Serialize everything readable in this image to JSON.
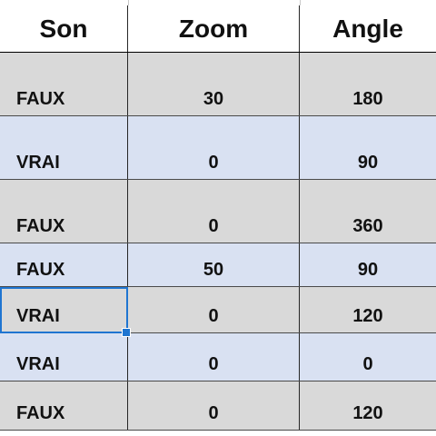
{
  "table": {
    "columns": [
      "Son",
      "Zoom",
      "Angle"
    ],
    "rows": [
      {
        "son": "FAUX",
        "zoom": "30",
        "angle": "180",
        "fill": "gray"
      },
      {
        "son": "VRAI",
        "zoom": "0",
        "angle": "90",
        "fill": "blue"
      },
      {
        "son": "FAUX",
        "zoom": "0",
        "angle": "360",
        "fill": "gray"
      },
      {
        "son": "FAUX",
        "zoom": "50",
        "angle": "90",
        "fill": "blue"
      },
      {
        "son": "VRAI",
        "zoom": "0",
        "angle": "120",
        "fill": "gray"
      },
      {
        "son": "VRAI",
        "zoom": "0",
        "angle": "0",
        "fill": "blue"
      },
      {
        "son": "FAUX",
        "zoom": "0",
        "angle": "120",
        "fill": "gray"
      }
    ],
    "selected_cell": {
      "column": "Son",
      "row_index": 4
    }
  },
  "colors": {
    "gray_row": "#d9d9d9",
    "blue_row": "#d9e1f2",
    "selection": "#1f75d1",
    "grid_line": "#262626",
    "text": "#111111"
  }
}
